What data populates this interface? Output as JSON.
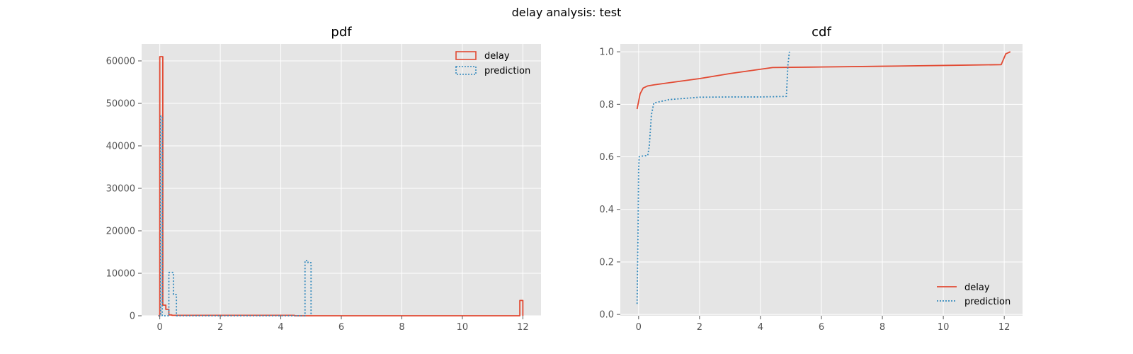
{
  "figure": {
    "suptitle": "delay analysis: test",
    "background": "#ffffff",
    "axes_facecolor": "#e5e5e5",
    "grid_color": "#ffffff",
    "tick_label_color": "#555555"
  },
  "chart_data": [
    {
      "type": "histogram-step",
      "title": "pdf",
      "xlabel": "",
      "ylabel": "",
      "xlim": [
        -0.6,
        12.6
      ],
      "ylim": [
        0,
        64000
      ],
      "xticks": [
        0,
        2,
        4,
        6,
        8,
        10,
        12
      ],
      "yticks": [
        0,
        10000,
        20000,
        30000,
        40000,
        50000,
        60000
      ],
      "grid": true,
      "legend": {
        "position": "top-right",
        "entries": [
          "delay",
          "prediction"
        ]
      },
      "series": [
        {
          "name": "delay",
          "color": "#e24a33",
          "linestyle": "solid",
          "x": [
            -0.05,
            0.0,
            0.1,
            0.2,
            0.3,
            0.4,
            4.45,
            11.9,
            12.0
          ],
          "y": [
            0,
            61000,
            2500,
            1500,
            200,
            100,
            0,
            3600,
            0
          ]
        },
        {
          "name": "prediction",
          "color": "#348abd",
          "linestyle": "dotted",
          "x": [
            -0.03,
            0.03,
            0.08,
            0.3,
            0.45,
            0.55,
            4.8,
            4.9,
            5.0
          ],
          "y": [
            0,
            47000,
            0,
            10200,
            5000,
            0,
            13000,
            12500,
            0
          ]
        }
      ]
    },
    {
      "type": "line",
      "title": "cdf",
      "xlabel": "",
      "ylabel": "",
      "xlim": [
        -0.6,
        12.6
      ],
      "ylim": [
        -0.005,
        1.03
      ],
      "xticks": [
        0,
        2,
        4,
        6,
        8,
        10,
        12
      ],
      "yticks": [
        0.0,
        0.2,
        0.4,
        0.6,
        0.8,
        1.0
      ],
      "ytick_labels": [
        "0.0",
        "0.2",
        "0.4",
        "0.6",
        "0.8",
        "1.0"
      ],
      "grid": true,
      "legend": {
        "position": "bottom-right",
        "entries": [
          "delay",
          "prediction"
        ]
      },
      "series": [
        {
          "name": "delay",
          "color": "#e24a33",
          "linestyle": "solid",
          "x": [
            -0.05,
            0.05,
            0.15,
            0.3,
            0.5,
            1.0,
            2.0,
            3.0,
            4.4,
            6.0,
            8.0,
            10.0,
            11.9,
            12.05,
            12.2
          ],
          "y": [
            0.782,
            0.84,
            0.862,
            0.87,
            0.874,
            0.882,
            0.898,
            0.917,
            0.94,
            0.942,
            0.945,
            0.948,
            0.951,
            0.992,
            1.0
          ]
        },
        {
          "name": "prediction",
          "color": "#348abd",
          "linestyle": "dotted",
          "x": [
            -0.05,
            -0.02,
            0.0,
            0.02,
            0.05,
            0.3,
            0.35,
            0.42,
            0.5,
            1.0,
            2.0,
            3.0,
            4.0,
            4.85,
            4.9,
            4.95
          ],
          "y": [
            0.04,
            0.3,
            0.55,
            0.6,
            0.602,
            0.605,
            0.64,
            0.76,
            0.805,
            0.818,
            0.827,
            0.828,
            0.828,
            0.83,
            0.95,
            1.0
          ]
        }
      ]
    }
  ]
}
